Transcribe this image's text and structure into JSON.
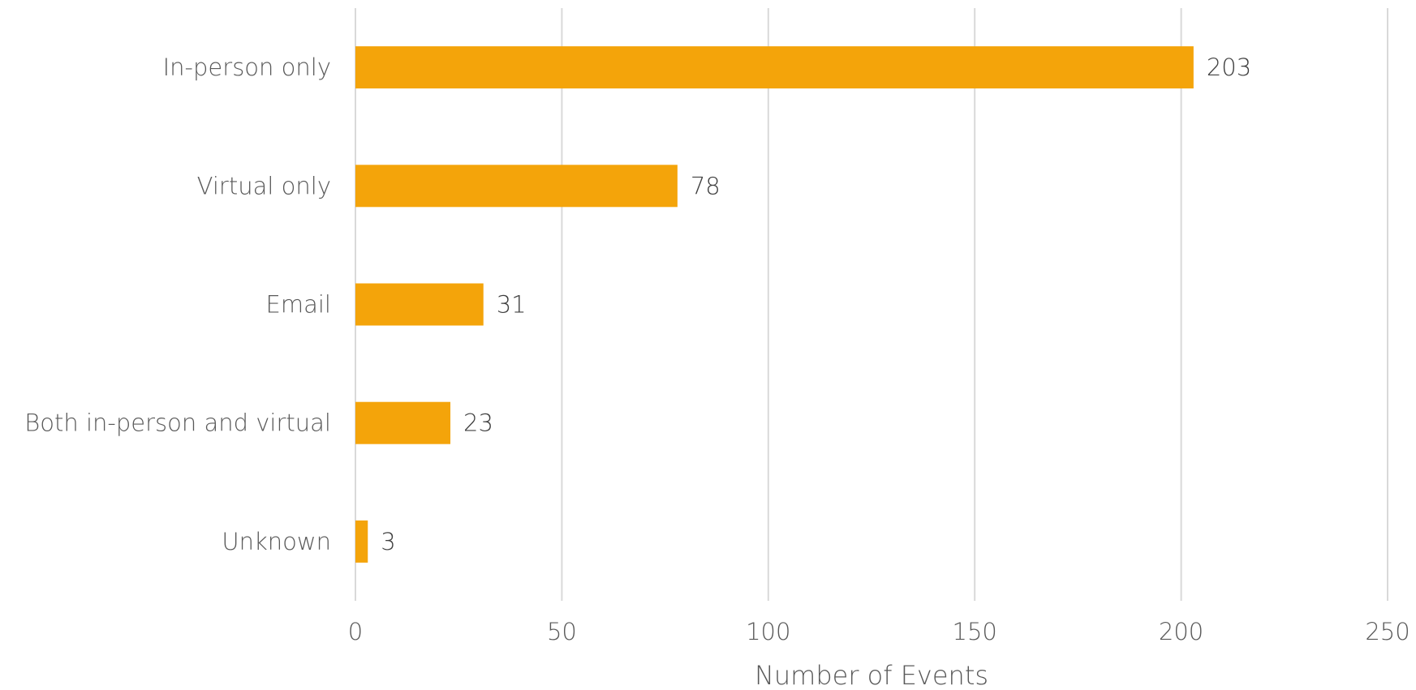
{
  "chart_data": {
    "type": "bar",
    "orientation": "horizontal",
    "categories": [
      "In-person only",
      "Virtual only",
      "Email",
      "Both in-person and virtual",
      "Unknown"
    ],
    "values": [
      203,
      78,
      31,
      23,
      3
    ],
    "data_labels": [
      "203",
      "78",
      "31",
      "23",
      "3"
    ],
    "title": "",
    "xlabel": "Number of Events",
    "ylabel": "",
    "xlim": [
      0,
      250
    ],
    "x_ticks": [
      0,
      50,
      100,
      150,
      200,
      250
    ],
    "x_tick_labels": [
      "0",
      "50",
      "100",
      "150",
      "200",
      "250"
    ],
    "grid": "vertical",
    "legend": "none",
    "bar_color": "#F4A40A"
  }
}
